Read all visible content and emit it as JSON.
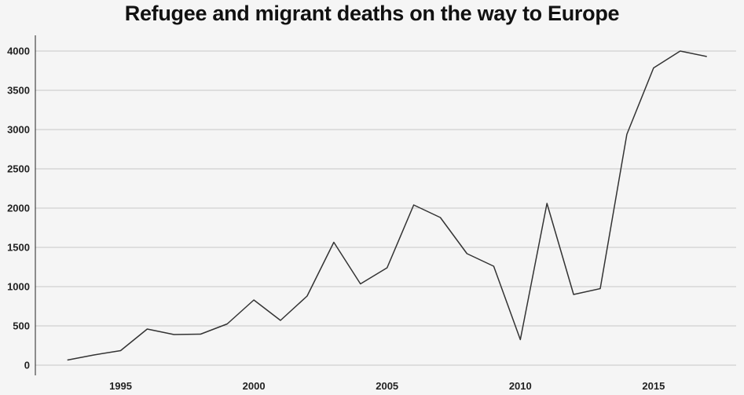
{
  "chart_data": {
    "type": "line",
    "title": "Refugee and migrant deaths on the way to Europe",
    "xlabel": "",
    "ylabel": "",
    "x": [
      1993,
      1994,
      1995,
      1996,
      1997,
      1998,
      1999,
      2000,
      2001,
      2002,
      2003,
      2004,
      2005,
      2006,
      2007,
      2008,
      2009,
      2010,
      2011,
      2012,
      2013,
      2014,
      2015,
      2016,
      2017
    ],
    "series": [
      {
        "values": [
          65,
          130,
          185,
          460,
          390,
          395,
          525,
          830,
          570,
          880,
          1565,
          1035,
          1240,
          2040,
          1880,
          1420,
          1260,
          325,
          2060,
          900,
          975,
          2940,
          3785,
          4000,
          3930
        ]
      }
    ],
    "xlim": [
      1991.8,
      2018.1
    ],
    "ylim": [
      0,
      4200
    ],
    "x_ticks": [
      "1995",
      "2000",
      "2005",
      "2010",
      "2015"
    ],
    "y_ticks": [
      "0",
      "500",
      "1000",
      "1500",
      "2000",
      "2500",
      "3000",
      "3500",
      "4000"
    ],
    "grid": true,
    "legend": "none",
    "colors": {
      "line": "#333333",
      "grid": "#c8c8c8",
      "axis": "#222222",
      "background": "#f5f5f5"
    }
  }
}
